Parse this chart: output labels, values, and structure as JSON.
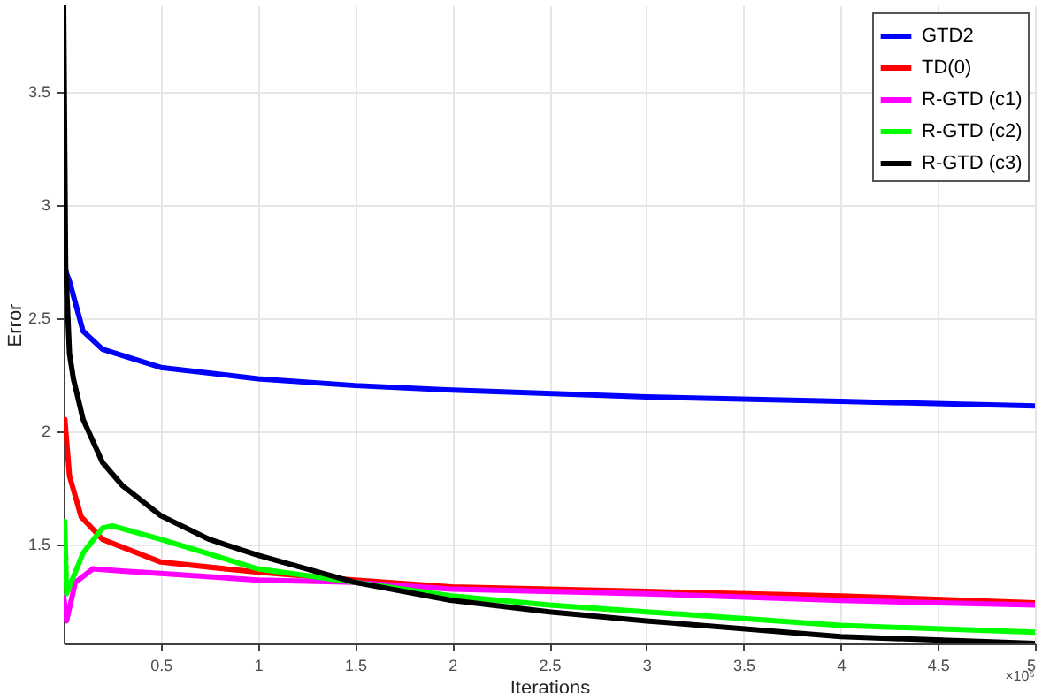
{
  "chart_data": {
    "type": "line",
    "xlabel": "Iterations",
    "ylabel": "Error",
    "annotations": [
      "×10⁵"
    ],
    "xlim": [
      0,
      5
    ],
    "xticks": [
      0.5,
      1,
      1.5,
      2,
      2.5,
      3,
      3.5,
      4,
      4.5,
      5
    ],
    "ylim": [
      1.06,
      3.88
    ],
    "yticks": [
      1.5,
      2,
      2.5,
      3,
      3.5
    ],
    "grid": true,
    "legend": "top right",
    "line_style": "solid",
    "marker": "none",
    "series": [
      {
        "name": "GTD2",
        "color": "#0000ff",
        "x": [
          0,
          0.03,
          0.1,
          0.2,
          0.5,
          1,
          1.5,
          2,
          3,
          4,
          5
        ],
        "values": [
          2.73,
          2.66,
          2.44,
          2.36,
          2.28,
          2.23,
          2.2,
          2.18,
          2.15,
          2.13,
          2.11
        ]
      },
      {
        "name": "TD(0)",
        "color": "#ff0000",
        "x": [
          0.006,
          0.03,
          0.09,
          0.2,
          0.5,
          1,
          1.5,
          2,
          3,
          4,
          5
        ],
        "values": [
          2.05,
          1.8,
          1.62,
          1.52,
          1.42,
          1.375,
          1.34,
          1.31,
          1.29,
          1.27,
          1.24
        ]
      },
      {
        "name": "R-GTD (c1)",
        "color": "#ff00ff",
        "x": [
          0,
          0.015,
          0.06,
          0.15,
          0.3,
          0.5,
          1,
          1.5,
          2,
          3,
          4,
          5
        ],
        "values": [
          1.27,
          1.16,
          1.33,
          1.39,
          1.38,
          1.37,
          1.34,
          1.33,
          1.3,
          1.28,
          1.25,
          1.23
        ]
      },
      {
        "name": "R-GTD (c2)",
        "color": "#00ff00",
        "x": [
          0.005,
          0.015,
          0.1,
          0.2,
          0.25,
          0.5,
          1,
          1.5,
          2,
          2.5,
          3,
          4,
          5
        ],
        "values": [
          1.6,
          1.28,
          1.46,
          1.57,
          1.58,
          1.52,
          1.39,
          1.33,
          1.27,
          1.23,
          1.2,
          1.14,
          1.11
        ]
      },
      {
        "name": "R-GTD (c3)",
        "color": "#000000",
        "x": [
          0,
          0.01,
          0.03,
          0.05,
          0.1,
          0.2,
          0.3,
          0.5,
          0.75,
          1,
          1.5,
          2,
          2.5,
          3,
          4,
          5
        ],
        "values": [
          3.88,
          2.73,
          2.34,
          2.23,
          2.05,
          1.86,
          1.76,
          1.625,
          1.52,
          1.45,
          1.33,
          1.25,
          1.2,
          1.16,
          1.09,
          1.06
        ]
      }
    ]
  }
}
